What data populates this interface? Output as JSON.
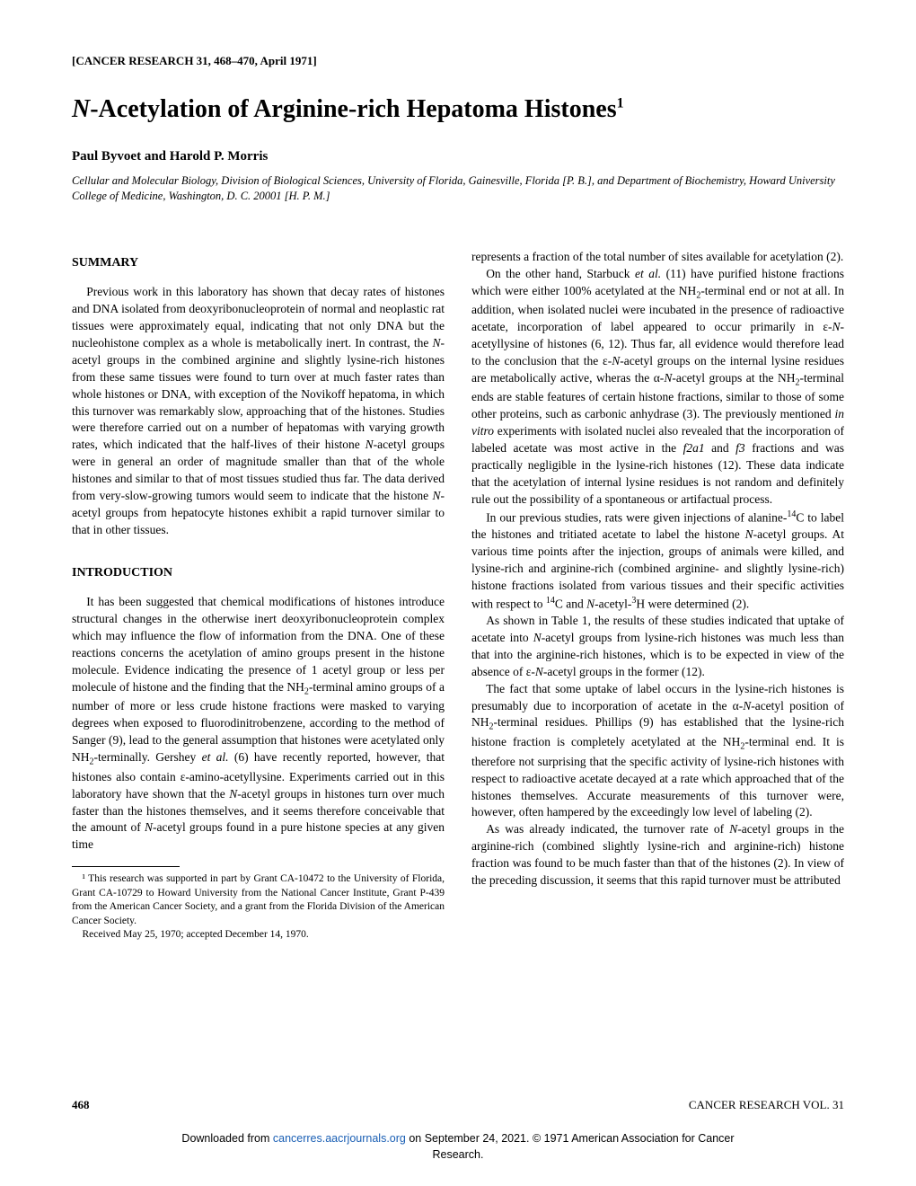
{
  "journal_ref": "[CANCER RESEARCH 31, 468–470, April 1971]",
  "title_prefix_italic": "N",
  "title_rest": "-Acetylation of Arginine-rich Hepatoma Histones",
  "title_sup": "1",
  "authors": "Paul Byvoet and Harold P. Morris",
  "affiliation": "Cellular and Molecular Biology, Division of Biological Sciences, University of Florida, Gainesville, Florida [P. B.], and Department of Biochemistry, Howard University College of Medicine, Washington, D. C. 20001 [H. P. M.]",
  "summary_heading": "SUMMARY",
  "intro_heading": "INTRODUCTION",
  "footnote1": "¹ This research was supported in part by Grant CA-10472 to the University of Florida, Grant CA-10729 to Howard University from the National Cancer Institute, Grant P-439 from the American Cancer Society, and a grant from the Florida Division of the American Cancer Society.",
  "footnote2": "Received May 25, 1970; accepted December 14, 1970.",
  "page_number": "468",
  "journal_footer": "CANCER RESEARCH VOL. 31",
  "download_prefix": "Downloaded from ",
  "download_link": "cancerres.aacrjournals.org",
  "download_mid": " on September 24, 2021. © 1971 American Association for Cancer",
  "download_line2": "Research."
}
